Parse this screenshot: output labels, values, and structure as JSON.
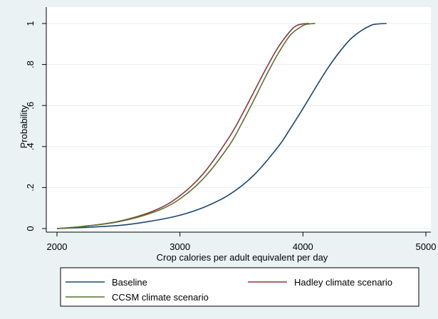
{
  "chart_data": {
    "type": "line",
    "xlabel": "Crop calories per adult equivalent per day",
    "ylabel": "Probability",
    "xlim": [
      2000,
      5000
    ],
    "ylim": [
      0,
      1
    ],
    "x_ticks": [
      2000,
      3000,
      4000,
      5000
    ],
    "x_tick_labels": [
      "2000",
      "3000",
      "4000",
      "5000"
    ],
    "y_ticks": [
      0,
      0.2,
      0.4,
      0.6,
      0.8,
      1
    ],
    "y_tick_labels": [
      "0",
      ".2",
      ".4",
      ".6",
      ".8",
      "1"
    ],
    "grid": "horizontal",
    "legend_position": "bottom",
    "series": [
      {
        "name": "Baseline",
        "color": "#1a476f",
        "x": [
          2000,
          2500,
          2800,
          3000,
          3200,
          3400,
          3600,
          3800,
          3900,
          4000,
          4200,
          4350,
          4450,
          4550,
          4600,
          4680
        ],
        "y": [
          0,
          0.015,
          0.04,
          0.065,
          0.105,
          0.165,
          0.26,
          0.4,
          0.49,
          0.585,
          0.78,
          0.9,
          0.955,
          0.99,
          0.997,
          1
        ]
      },
      {
        "name": "Hadley climate scenario",
        "color": "#90353b",
        "x": [
          2000,
          2200,
          2500,
          2800,
          3000,
          3200,
          3400,
          3500,
          3600,
          3700,
          3800,
          3900,
          3950,
          4000,
          4050
        ],
        "y": [
          0,
          0.01,
          0.035,
          0.09,
          0.16,
          0.275,
          0.445,
          0.55,
          0.665,
          0.78,
          0.885,
          0.965,
          0.99,
          0.998,
          1
        ]
      },
      {
        "name": "CCSM climate scenario",
        "color": "#55752f",
        "x": [
          2000,
          2200,
          2500,
          2800,
          3000,
          3200,
          3400,
          3500,
          3600,
          3700,
          3800,
          3900,
          4000,
          4050,
          4100
        ],
        "y": [
          0,
          0.01,
          0.033,
          0.083,
          0.145,
          0.25,
          0.405,
          0.51,
          0.625,
          0.745,
          0.855,
          0.945,
          0.99,
          0.998,
          1
        ]
      }
    ]
  }
}
